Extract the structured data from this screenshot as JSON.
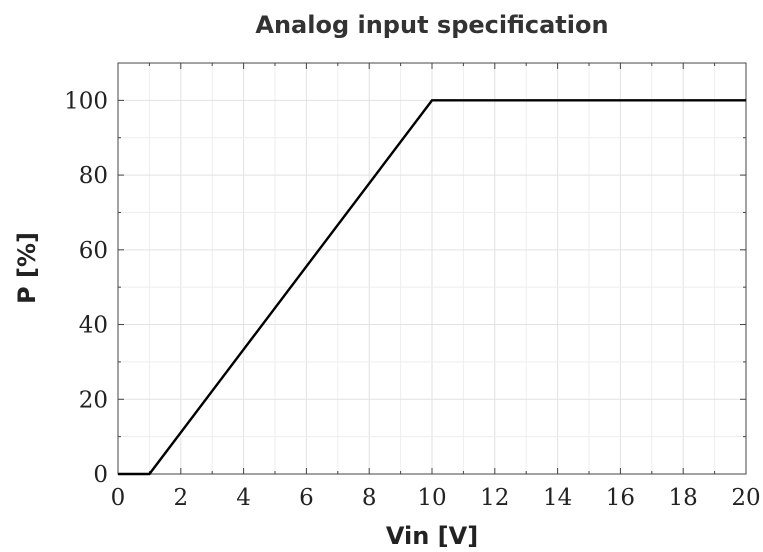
{
  "chart_data": {
    "type": "line",
    "title": "Analog input specification",
    "xlabel": "Vin [V]",
    "ylabel": "P [%]",
    "xlim": [
      0,
      20
    ],
    "ylim": [
      0,
      110
    ],
    "x_ticks": [
      0,
      2,
      4,
      6,
      8,
      10,
      12,
      14,
      16,
      18,
      20
    ],
    "y_ticks": [
      0,
      20,
      40,
      60,
      80,
      100
    ],
    "x_minor_step": 1,
    "y_minor_step": 10,
    "grid": true,
    "series": [
      {
        "x": [
          0,
          1,
          10,
          20
        ],
        "y": [
          0,
          0,
          100,
          100
        ],
        "color": "#000000"
      }
    ]
  }
}
